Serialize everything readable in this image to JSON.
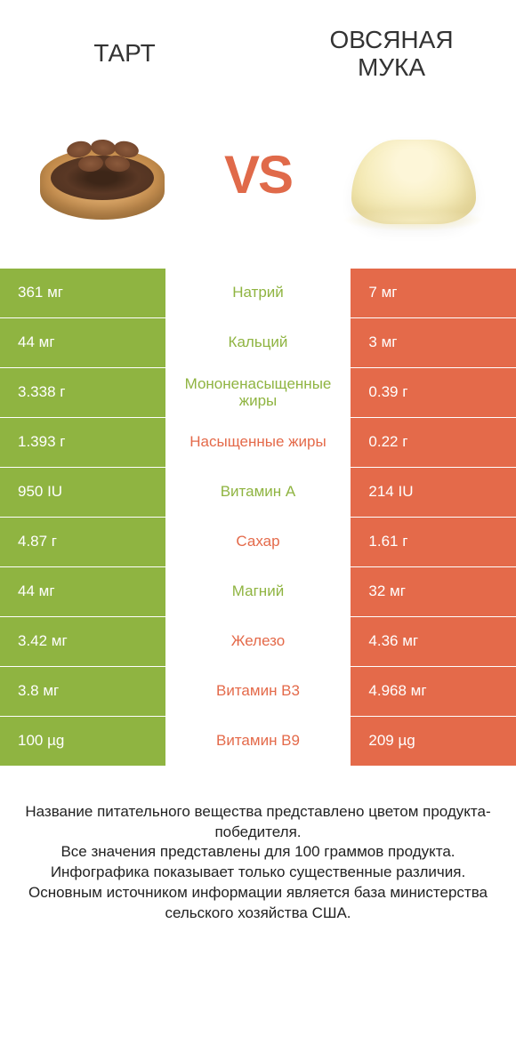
{
  "colors": {
    "green": "#8fb441",
    "orange": "#e46a4a",
    "text_green": "#8fb441",
    "text_orange": "#e46a4a",
    "footer_text": "#222222"
  },
  "header": {
    "left": "ТАРТ",
    "right": "ОВСЯНАЯ МУКА",
    "vs": "VS"
  },
  "rows": [
    {
      "left": "361 мг",
      "label": "Натрий",
      "right": "7 мг",
      "winner": "left"
    },
    {
      "left": "44 мг",
      "label": "Кальций",
      "right": "3 мг",
      "winner": "left"
    },
    {
      "left": "3.338 г",
      "label": "Мононенасыщенные жиры",
      "right": "0.39 г",
      "winner": "left"
    },
    {
      "left": "1.393 г",
      "label": "Насыщенные жиры",
      "right": "0.22 г",
      "winner": "right"
    },
    {
      "left": "950 IU",
      "label": "Витамин A",
      "right": "214 IU",
      "winner": "left"
    },
    {
      "left": "4.87 г",
      "label": "Сахар",
      "right": "1.61 г",
      "winner": "right"
    },
    {
      "left": "44 мг",
      "label": "Магний",
      "right": "32 мг",
      "winner": "left"
    },
    {
      "left": "3.42 мг",
      "label": "Железо",
      "right": "4.36 мг",
      "winner": "right"
    },
    {
      "left": "3.8 мг",
      "label": "Витамин B3",
      "right": "4.968 мг",
      "winner": "right"
    },
    {
      "left": "100 µg",
      "label": "Витамин B9",
      "right": "209 µg",
      "winner": "right"
    }
  ],
  "footer": {
    "line1": "Название питательного вещества представлено цветом продукта-победителя.",
    "line2": "Все значения представлены для 100 граммов продукта.",
    "line3": "Инфографика показывает только существенные различия.",
    "line4": "Основным источником информации является база министерства сельского хозяйства США."
  }
}
